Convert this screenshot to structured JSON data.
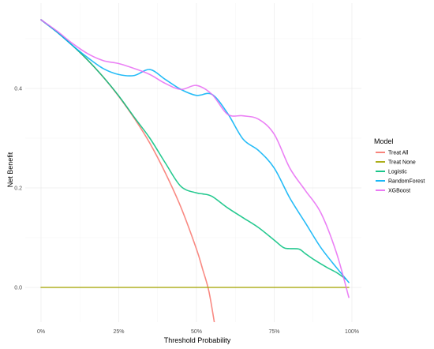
{
  "chart_data": {
    "type": "line",
    "title": "",
    "xlabel": "Threshold Probability",
    "ylabel": "Net Benefit",
    "xlim": [
      0,
      1
    ],
    "ylim": [
      -0.08,
      0.54
    ],
    "x_ticks": [
      0,
      0.25,
      0.5,
      0.75,
      1.0
    ],
    "x_tick_labels": [
      "0%",
      "25%",
      "50%",
      "75%",
      "100%"
    ],
    "y_ticks": [
      0.0,
      0.2,
      0.4
    ],
    "y_tick_labels": [
      "0.0",
      "0.2",
      "0.4"
    ],
    "grid": true,
    "legend_position": "right",
    "legend_title": "Model",
    "series": [
      {
        "name": "Treat All",
        "color": "#F8766D",
        "x": [
          0,
          0.05,
          0.1,
          0.15,
          0.2,
          0.25,
          0.3,
          0.35,
          0.4,
          0.45,
          0.5,
          0.52,
          0.54,
          0.56
        ],
        "y": [
          0.538,
          0.514,
          0.487,
          0.457,
          0.423,
          0.384,
          0.34,
          0.29,
          0.23,
          0.161,
          0.077,
          0.036,
          -0.008,
          -0.08
        ]
      },
      {
        "name": "Treat None",
        "color": "#A3A500",
        "x": [
          0,
          0.99
        ],
        "y": [
          0.0,
          0.0
        ]
      },
      {
        "name": "Logistic",
        "color": "#00BF7D",
        "x": [
          0,
          0.05,
          0.1,
          0.15,
          0.2,
          0.25,
          0.3,
          0.35,
          0.4,
          0.45,
          0.5,
          0.52,
          0.55,
          0.6,
          0.65,
          0.7,
          0.75,
          0.78,
          0.8,
          0.83,
          0.85,
          0.88,
          0.92,
          0.95,
          0.98
        ],
        "y": [
          0.538,
          0.514,
          0.487,
          0.457,
          0.423,
          0.385,
          0.342,
          0.3,
          0.25,
          0.203,
          0.19,
          0.188,
          0.183,
          0.16,
          0.14,
          0.12,
          0.095,
          0.08,
          0.078,
          0.077,
          0.068,
          0.055,
          0.04,
          0.03,
          0.017
        ]
      },
      {
        "name": "RandomForest",
        "color": "#00B0F6",
        "x": [
          0,
          0.05,
          0.1,
          0.15,
          0.2,
          0.25,
          0.3,
          0.35,
          0.4,
          0.45,
          0.5,
          0.55,
          0.6,
          0.65,
          0.7,
          0.75,
          0.8,
          0.85,
          0.9,
          0.95,
          0.99
        ],
        "y": [
          0.538,
          0.514,
          0.487,
          0.462,
          0.44,
          0.428,
          0.426,
          0.438,
          0.418,
          0.398,
          0.386,
          0.388,
          0.35,
          0.298,
          0.275,
          0.24,
          0.18,
          0.13,
          0.08,
          0.04,
          0.01
        ]
      },
      {
        "name": "XGBoost",
        "color": "#E76BF3",
        "x": [
          0,
          0.05,
          0.1,
          0.15,
          0.2,
          0.25,
          0.3,
          0.35,
          0.4,
          0.45,
          0.5,
          0.55,
          0.6,
          0.65,
          0.7,
          0.75,
          0.8,
          0.85,
          0.9,
          0.95,
          0.99
        ],
        "y": [
          0.538,
          0.516,
          0.491,
          0.47,
          0.456,
          0.45,
          0.44,
          0.428,
          0.41,
          0.398,
          0.406,
          0.388,
          0.348,
          0.345,
          0.338,
          0.308,
          0.24,
          0.195,
          0.15,
          0.07,
          -0.02
        ]
      }
    ]
  }
}
